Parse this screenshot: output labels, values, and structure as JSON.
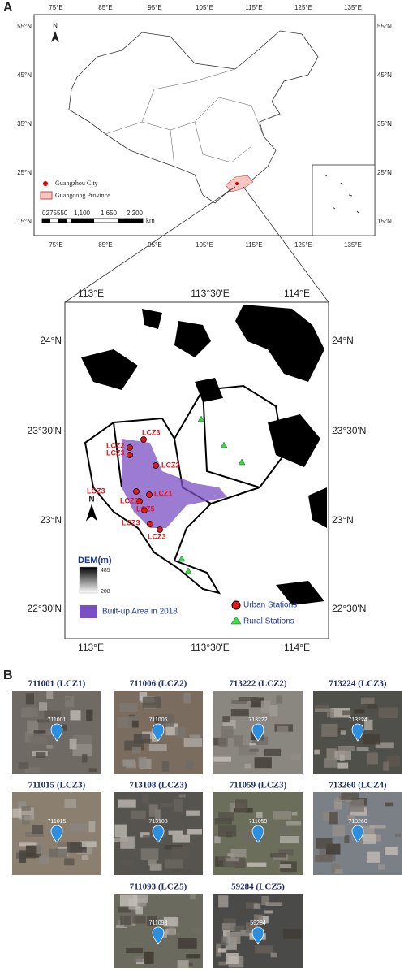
{
  "panel_a": {
    "label": "A",
    "lon_labels": [
      "75°E",
      "85°E",
      "95°E",
      "105°E",
      "115°E",
      "125°E",
      "135°E"
    ],
    "lat_labels": [
      "55°N",
      "45°N",
      "35°N",
      "25°N",
      "15°N"
    ],
    "north": "N",
    "legend": [
      "Guangzhou City",
      "Guangdong Province"
    ],
    "scale_ticks": [
      "0",
      "275550",
      "1,100",
      "1,650",
      "2,200"
    ],
    "scale_unit": "km"
  },
  "map_b": {
    "lon_labels": [
      "113°E",
      "113°30'E",
      "114°E"
    ],
    "lat_labels": [
      "24°N",
      "23°30'N",
      "23°N",
      "22°30'N"
    ],
    "north": "N",
    "dem_title": "DEM(m)",
    "dem_max": "485",
    "dem_min": "208",
    "builtup": "Built-up Area in 2018",
    "urban": "Urban Stations",
    "rural": "Rural Stations",
    "station_labels": [
      "LCZ3",
      "LCZ2",
      "LCZ3",
      "LCZ2",
      "LCZ3",
      "LCZ1",
      "LCZ3",
      "LCZ5",
      "LCZ3",
      "LCZ3"
    ]
  },
  "panel_b": {
    "label": "B",
    "sites": [
      {
        "title": "711001 (LCZ1)",
        "pin": "711001"
      },
      {
        "title": "711006 (LCZ2)",
        "pin": "711006"
      },
      {
        "title": "713222 (LCZ2)",
        "pin": "713222"
      },
      {
        "title": "713224 (LCZ3)",
        "pin": "713224"
      },
      {
        "title": "711015 (LCZ3)",
        "pin": "711015"
      },
      {
        "title": "713108 (LCZ3)",
        "pin": "713108"
      },
      {
        "title": "711059 (LCZ3)",
        "pin": "711059"
      },
      {
        "title": "713260 (LCZ4)",
        "pin": "713260"
      },
      {
        "title": "711093 (LCZ5)",
        "pin": "711093"
      },
      {
        "title": "59284 (LCZ5)",
        "pin": "59284"
      }
    ]
  }
}
